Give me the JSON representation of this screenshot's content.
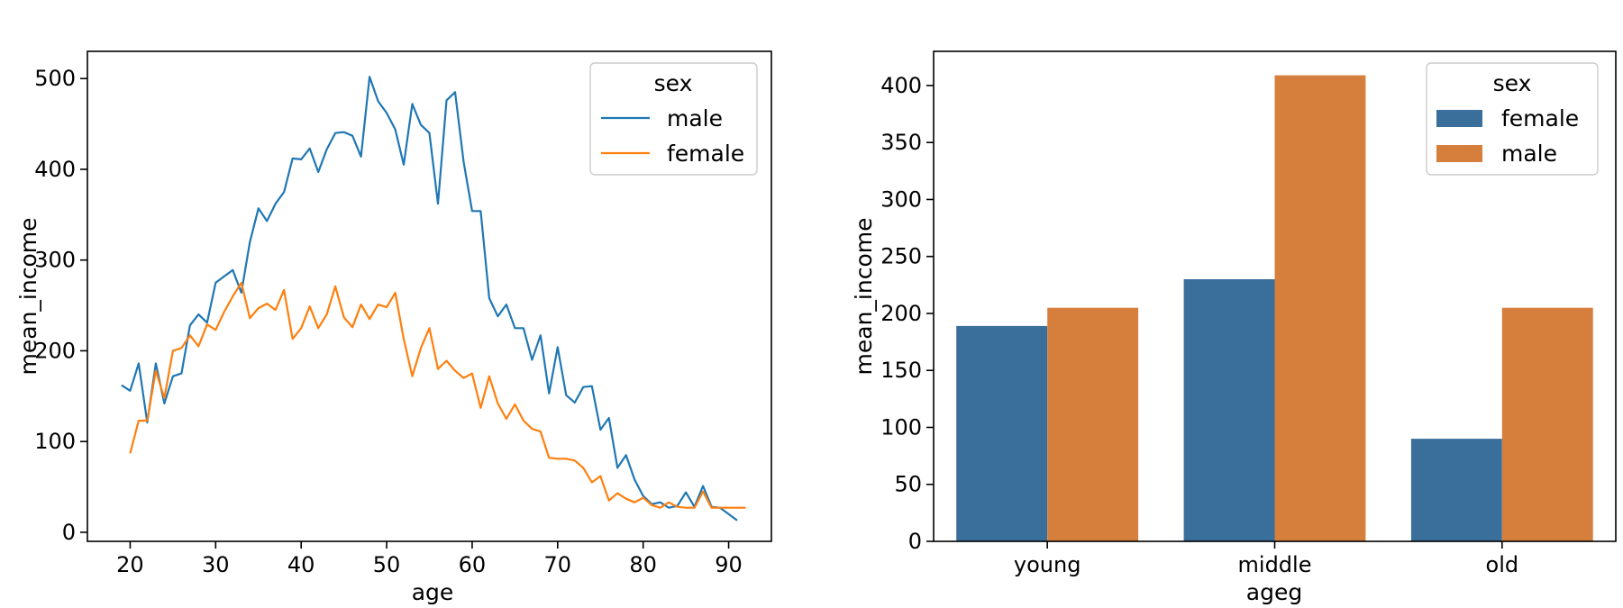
{
  "chart_data": [
    {
      "type": "line",
      "xlabel": "age",
      "ylabel": "mean_income",
      "xlim": [
        15,
        95
      ],
      "ylim": [
        -10,
        530
      ],
      "xticks": [
        20,
        30,
        40,
        50,
        60,
        70,
        80,
        90
      ],
      "yticks": [
        0,
        100,
        200,
        300,
        400,
        500
      ],
      "grid": false,
      "legend": {
        "title": "sex",
        "placement": "top-right"
      },
      "series": [
        {
          "name": "male",
          "color": "#1f77b4",
          "x": [
            19,
            20,
            21,
            22,
            23,
            24,
            25,
            26,
            27,
            28,
            29,
            30,
            31,
            32,
            33,
            34,
            35,
            36,
            37,
            38,
            39,
            40,
            41,
            42,
            43,
            44,
            45,
            46,
            47,
            48,
            49,
            50,
            51,
            52,
            53,
            54,
            55,
            56,
            57,
            58,
            59,
            60,
            61,
            62,
            63,
            64,
            65,
            66,
            67,
            68,
            69,
            70,
            71,
            72,
            73,
            74,
            75,
            76,
            77,
            78,
            79,
            80,
            81,
            82,
            83,
            84,
            85,
            86,
            87,
            88,
            89,
            90,
            91
          ],
          "y": [
            162,
            156,
            186,
            121,
            186,
            142,
            172,
            175,
            228,
            240,
            231,
            275,
            282,
            289,
            264,
            320,
            357,
            343,
            362,
            375,
            412,
            411,
            423,
            397,
            422,
            440,
            441,
            437,
            414,
            502,
            475,
            462,
            444,
            405,
            472,
            449,
            440,
            362,
            476,
            485,
            408,
            354,
            354,
            258,
            238,
            251,
            225,
            225,
            190,
            217,
            153,
            204,
            151,
            143,
            160,
            161,
            113,
            126,
            71,
            85,
            58,
            40,
            31,
            33,
            27,
            29,
            44,
            28,
            51,
            28,
            27,
            20,
            13
          ]
        },
        {
          "name": "female",
          "color": "#ff7f0e",
          "x": [
            20,
            21,
            22,
            23,
            24,
            25,
            26,
            27,
            28,
            29,
            30,
            31,
            32,
            33,
            34,
            35,
            36,
            37,
            38,
            39,
            40,
            41,
            42,
            43,
            44,
            45,
            46,
            47,
            48,
            49,
            50,
            51,
            52,
            53,
            54,
            55,
            56,
            57,
            58,
            59,
            60,
            61,
            62,
            63,
            64,
            65,
            66,
            67,
            68,
            69,
            70,
            71,
            72,
            73,
            74,
            75,
            76,
            77,
            78,
            79,
            80,
            81,
            82,
            83,
            84,
            85,
            86,
            87,
            88,
            89,
            90,
            91,
            92
          ],
          "y": [
            87,
            123,
            123,
            178,
            148,
            200,
            203,
            217,
            205,
            229,
            223,
            243,
            260,
            275,
            236,
            247,
            252,
            245,
            267,
            213,
            225,
            249,
            225,
            240,
            271,
            237,
            226,
            251,
            235,
            251,
            248,
            264,
            213,
            172,
            203,
            225,
            180,
            189,
            178,
            170,
            175,
            137,
            172,
            142,
            125,
            141,
            123,
            114,
            111,
            82,
            81,
            81,
            79,
            71,
            55,
            62,
            35,
            43,
            37,
            33,
            38,
            30,
            27,
            33,
            28,
            27,
            27,
            45,
            27,
            27,
            27,
            27,
            27
          ]
        }
      ]
    },
    {
      "type": "bar",
      "xlabel": "ageg",
      "ylabel": "mean_income",
      "categories": [
        "young",
        "middle",
        "old"
      ],
      "ylim": [
        0,
        430
      ],
      "yticks": [
        0,
        50,
        100,
        150,
        200,
        250,
        300,
        350,
        400
      ],
      "grid": false,
      "legend": {
        "title": "sex",
        "placement": "top-right"
      },
      "series": [
        {
          "name": "female",
          "color": "#3a6f9b",
          "values": [
            189,
            230,
            90
          ]
        },
        {
          "name": "male",
          "color": "#d67e3c",
          "values": [
            205,
            409,
            205
          ]
        }
      ]
    }
  ]
}
